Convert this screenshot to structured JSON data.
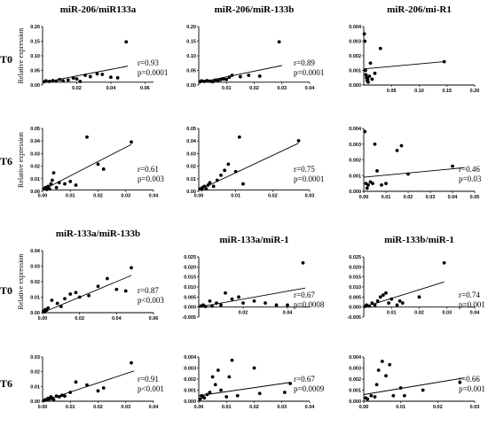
{
  "figure": {
    "row_labels": [
      "T0",
      "T6",
      "T0",
      "T6"
    ],
    "ylabel": "Relative expression"
  },
  "chart_data": [
    {
      "type": "scatter",
      "title": "miR-206/miR133a",
      "row": "T0",
      "r": "r=0.93",
      "p": "p=0.0001",
      "xlim": [
        0,
        0.065
      ],
      "ylim": [
        -0.01,
        0.2
      ],
      "xticks": [
        "0.02",
        "0.04",
        "0.06"
      ],
      "yticks": [
        "0.00",
        "0.05",
        "0.10",
        "0.15",
        "0.20"
      ],
      "x": [
        0.001,
        0.002,
        0.004,
        0.006,
        0.008,
        0.01,
        0.012,
        0.015,
        0.018,
        0.02,
        0.022,
        0.025,
        0.028,
        0.032,
        0.035,
        0.04,
        0.044,
        0.049
      ],
      "y": [
        0.002,
        0.005,
        0.003,
        0.006,
        0.004,
        0.01,
        0.005,
        0.008,
        0.015,
        0.012,
        0.003,
        0.025,
        0.02,
        0.03,
        0.028,
        0.018,
        0.016,
        0.145
      ],
      "fit": [
        [
          0,
          -0.001
        ],
        [
          0.05,
          0.058
        ]
      ]
    },
    {
      "type": "scatter",
      "title": "miR-206/miR-133b",
      "row": "T0",
      "r": "r=0.89",
      "p": "p=0.0001",
      "xlim": [
        0,
        0.04
      ],
      "ylim": [
        -0.01,
        0.2
      ],
      "xticks": [
        "0.01",
        "0.02",
        "0.03",
        "0.04"
      ],
      "yticks": [
        "0.00",
        "0.05",
        "0.10",
        "0.15",
        "0.20"
      ],
      "x": [
        0.0005,
        0.001,
        0.002,
        0.003,
        0.004,
        0.005,
        0.006,
        0.007,
        0.008,
        0.009,
        0.01,
        0.011,
        0.012,
        0.015,
        0.018,
        0.022,
        0.029
      ],
      "y": [
        0.002,
        0.005,
        0.003,
        0.006,
        0.004,
        0.002,
        0.008,
        0.006,
        0.01,
        0.012,
        0.01,
        0.018,
        0.025,
        0.02,
        0.025,
        0.022,
        0.145
      ],
      "fit": [
        [
          0,
          -0.001
        ],
        [
          0.03,
          0.06
        ]
      ]
    },
    {
      "type": "scatter",
      "title": "miR-206/mi-R1",
      "row": "T0",
      "r": "",
      "p": "",
      "xlim": [
        0,
        0.2
      ],
      "ylim": [
        0,
        0.004
      ],
      "xticks": [
        "0.05",
        "0.10",
        "0.15",
        "0.20"
      ],
      "yticks": [
        "0.000",
        "0.001",
        "0.002",
        "0.003",
        "0.004"
      ],
      "x": [
        0.001,
        0.002,
        0.003,
        0.004,
        0.005,
        0.006,
        0.007,
        0.008,
        0.01,
        0.012,
        0.015,
        0.02,
        0.03,
        0.145
      ],
      "y": [
        0.0035,
        0.003,
        0.001,
        0.0007,
        0.0005,
        0.0003,
        0.0004,
        0.0002,
        0.0006,
        0.0015,
        0.0004,
        0.0008,
        0.0025,
        0.0016
      ],
      "fit": [
        [
          0,
          0.0011
        ],
        [
          0.145,
          0.0016
        ]
      ]
    },
    {
      "type": "scatter",
      "title": "",
      "row": "T6",
      "r": "r=0.61",
      "p": "p=0.003",
      "xlim": [
        0,
        0.04
      ],
      "ylim": [
        -0.001,
        0.05
      ],
      "xticks": [
        "0.00",
        "0.01",
        "0.02",
        "0.03",
        "0.04"
      ],
      "yticks": [
        "0.00",
        "0.01",
        "0.02",
        "0.03",
        "0.04",
        "0.05"
      ],
      "x": [
        0.0005,
        0.001,
        0.0015,
        0.002,
        0.0025,
        0.003,
        0.0035,
        0.004,
        0.005,
        0.006,
        0.008,
        0.01,
        0.012,
        0.016,
        0.02,
        0.022,
        0.032
      ],
      "y": [
        0.001,
        0.002,
        0.0005,
        0.003,
        0.001,
        0.005,
        0.008,
        0.014,
        0.002,
        0.006,
        0.005,
        0.007,
        0.004,
        0.043,
        0.021,
        0.017,
        0.039
      ],
      "fit": [
        [
          0,
          0.0
        ],
        [
          0.032,
          0.037
        ]
      ]
    },
    {
      "type": "scatter",
      "title": "",
      "row": "T6",
      "r": "r=0.75",
      "p": "p=0.0001",
      "xlim": [
        0,
        0.03
      ],
      "ylim": [
        -0.001,
        0.05
      ],
      "xticks": [
        "0.00",
        "0.01",
        "0.02",
        "0.03"
      ],
      "yticks": [
        "0.00",
        "0.01",
        "0.02",
        "0.03",
        "0.04",
        "0.05"
      ],
      "x": [
        0.0003,
        0.0008,
        0.001,
        0.0015,
        0.002,
        0.0025,
        0.003,
        0.004,
        0.005,
        0.006,
        0.007,
        0.008,
        0.01,
        0.011,
        0.012,
        0.027
      ],
      "y": [
        0.001,
        0.0005,
        0.002,
        0.003,
        0.001,
        0.004,
        0.006,
        0.003,
        0.008,
        0.012,
        0.016,
        0.021,
        0.015,
        0.043,
        0.005,
        0.04
      ],
      "fit": [
        [
          0,
          0.0
        ],
        [
          0.027,
          0.038
        ]
      ]
    },
    {
      "type": "scatter",
      "title": "",
      "row": "T6",
      "r": "r=0.46",
      "p": "p=0.03",
      "xlim": [
        0,
        0.05
      ],
      "ylim": [
        0,
        0.004
      ],
      "xticks": [
        "0.00",
        "0.01",
        "0.02",
        "0.03",
        "0.04",
        "0.05"
      ],
      "yticks": [
        "0.000",
        "0.001",
        "0.002",
        "0.003",
        "0.004"
      ],
      "x": [
        0.0005,
        0.001,
        0.0015,
        0.002,
        0.003,
        0.004,
        0.005,
        0.006,
        0.008,
        0.01,
        0.015,
        0.017,
        0.02,
        0.04
      ],
      "y": [
        0.0038,
        0.0005,
        0.0002,
        0.0004,
        0.0006,
        0.0005,
        0.003,
        0.0013,
        0.0004,
        0.0005,
        0.0026,
        0.0029,
        0.0011,
        0.0016
      ],
      "fit": [
        [
          0,
          0.0009
        ],
        [
          0.045,
          0.0015
        ]
      ]
    },
    {
      "type": "scatter",
      "title": "miR-133a/miR-133b",
      "row": "T0",
      "r": "r=0.87",
      "p": "p<0.003",
      "xlim": [
        0,
        0.06
      ],
      "ylim": [
        0,
        0.04
      ],
      "xticks": [
        "0.00",
        "0.02",
        "0.04",
        "0.06"
      ],
      "yticks": [
        "0.00",
        "0.01",
        "0.02",
        "0.03",
        "0.04"
      ],
      "x": [
        0.0005,
        0.001,
        0.0015,
        0.002,
        0.003,
        0.005,
        0.008,
        0.01,
        0.012,
        0.015,
        0.018,
        0.02,
        0.025,
        0.03,
        0.035,
        0.04,
        0.045,
        0.048
      ],
      "y": [
        0.001,
        0.0005,
        0.002,
        0.0015,
        0.003,
        0.008,
        0.006,
        0.004,
        0.009,
        0.012,
        0.013,
        0.01,
        0.011,
        0.017,
        0.022,
        0.015,
        0.014,
        0.029
      ],
      "fit": [
        [
          0,
          0.0
        ],
        [
          0.048,
          0.024
        ]
      ]
    },
    {
      "type": "scatter",
      "title": "miR-133a/miR-1",
      "row": "T0",
      "r": "r=0.67",
      "p": "p=0.0008",
      "xlim": [
        0,
        0.05
      ],
      "ylim": [
        -0.005,
        0.025
      ],
      "xticks": [
        "0.02",
        "0.04"
      ],
      "yticks": [
        "-0.005",
        "0.000",
        "0.005",
        "0.010",
        "0.015",
        "0.020",
        "0.025"
      ],
      "x": [
        0.001,
        0.002,
        0.003,
        0.005,
        0.006,
        0.008,
        0.01,
        0.012,
        0.015,
        0.018,
        0.02,
        0.025,
        0.03,
        0.035,
        0.04,
        0.047
      ],
      "y": [
        0.0005,
        0.001,
        0.0003,
        0.003,
        0.0005,
        0.002,
        0.001,
        0.007,
        0.004,
        0.005,
        0.002,
        0.003,
        0.002,
        0.001,
        0.001,
        0.022
      ],
      "fit": [
        [
          0,
          0.0
        ],
        [
          0.048,
          0.0095
        ]
      ]
    },
    {
      "type": "scatter",
      "title": "miR-133b/miR-1",
      "row": "T0",
      "r": "r=0.74",
      "p": "p=0.001",
      "xlim": [
        0,
        0.04
      ],
      "ylim": [
        -0.005,
        0.025
      ],
      "xticks": [
        "0.01",
        "0.02",
        "0.03",
        "0.04"
      ],
      "yticks": [
        "-0.005",
        "0.000",
        "0.005",
        "0.010",
        "0.015",
        "0.020",
        "0.025"
      ],
      "x": [
        0.0005,
        0.001,
        0.002,
        0.003,
        0.004,
        0.005,
        0.006,
        0.007,
        0.008,
        0.009,
        0.01,
        0.012,
        0.013,
        0.014,
        0.02,
        0.029
      ],
      "y": [
        0.0003,
        0.001,
        0.0005,
        0.002,
        0.001,
        0.003,
        0.005,
        0.006,
        0.007,
        0.002,
        0.004,
        0.001,
        0.003,
        0.002,
        0.005,
        0.022
      ],
      "fit": [
        [
          0,
          0.0
        ],
        [
          0.029,
          0.0125
        ]
      ]
    },
    {
      "type": "scatter",
      "title": "",
      "row": "T6",
      "r": "r=0.91",
      "p": "p<0.001",
      "xlim": [
        0,
        0.04
      ],
      "ylim": [
        0,
        0.03
      ],
      "xticks": [
        "0.00",
        "0.01",
        "0.02",
        "0.03",
        "0.04"
      ],
      "yticks": [
        "0.00",
        "0.01",
        "0.02",
        "0.03"
      ],
      "x": [
        0.0005,
        0.001,
        0.0015,
        0.002,
        0.0025,
        0.003,
        0.0035,
        0.004,
        0.005,
        0.006,
        0.007,
        0.008,
        0.01,
        0.012,
        0.016,
        0.02,
        0.022,
        0.032
      ],
      "y": [
        0.0005,
        0.001,
        0.0008,
        0.002,
        0.0015,
        0.003,
        0.002,
        0.001,
        0.0035,
        0.003,
        0.004,
        0.0035,
        0.006,
        0.013,
        0.011,
        0.007,
        0.009,
        0.026
      ],
      "fit": [
        [
          0,
          0.0
        ],
        [
          0.033,
          0.0205
        ]
      ]
    },
    {
      "type": "scatter",
      "title": "",
      "row": "T6",
      "r": "r=0.67",
      "p": "p=0.0009",
      "xlim": [
        0,
        0.04
      ],
      "ylim": [
        0,
        0.004
      ],
      "xticks": [
        "0.00",
        "0.01",
        "0.02",
        "0.03",
        "0.04"
      ],
      "yticks": [
        "0.000",
        "0.001",
        "0.002",
        "0.003",
        "0.004"
      ],
      "x": [
        0.0005,
        0.001,
        0.0015,
        0.002,
        0.003,
        0.004,
        0.005,
        0.006,
        0.007,
        0.008,
        0.01,
        0.011,
        0.012,
        0.014,
        0.02,
        0.022,
        0.031,
        0.033
      ],
      "y": [
        0.0002,
        0.0005,
        0.0004,
        0.0003,
        0.0006,
        0.0008,
        0.0022,
        0.0015,
        0.0028,
        0.001,
        0.0004,
        0.0022,
        0.0037,
        0.0005,
        0.003,
        0.0007,
        0.0008,
        0.0016
      ],
      "fit": [
        [
          0,
          0.0005
        ],
        [
          0.033,
          0.0017
        ]
      ]
    },
    {
      "type": "scatter",
      "title": "",
      "row": "T6",
      "r": "r=0.66",
      "p": "p=0.001",
      "xlim": [
        0,
        0.03
      ],
      "ylim": [
        0,
        0.004
      ],
      "xticks": [
        "0.00",
        "0.01",
        "0.02",
        "0.03"
      ],
      "yticks": [
        "0.000",
        "0.001",
        "0.002",
        "0.003",
        "0.004"
      ],
      "x": [
        0.0005,
        0.001,
        0.002,
        0.003,
        0.0035,
        0.004,
        0.005,
        0.006,
        0.007,
        0.008,
        0.01,
        0.011,
        0.016,
        0.026
      ],
      "y": [
        0.0003,
        0.0002,
        0.0005,
        0.0004,
        0.0015,
        0.0028,
        0.0036,
        0.0023,
        0.0033,
        0.0005,
        0.0012,
        0.0005,
        0.001,
        0.0017
      ],
      "fit": [
        [
          0,
          0.0006
        ],
        [
          0.027,
          0.0021
        ]
      ]
    }
  ]
}
